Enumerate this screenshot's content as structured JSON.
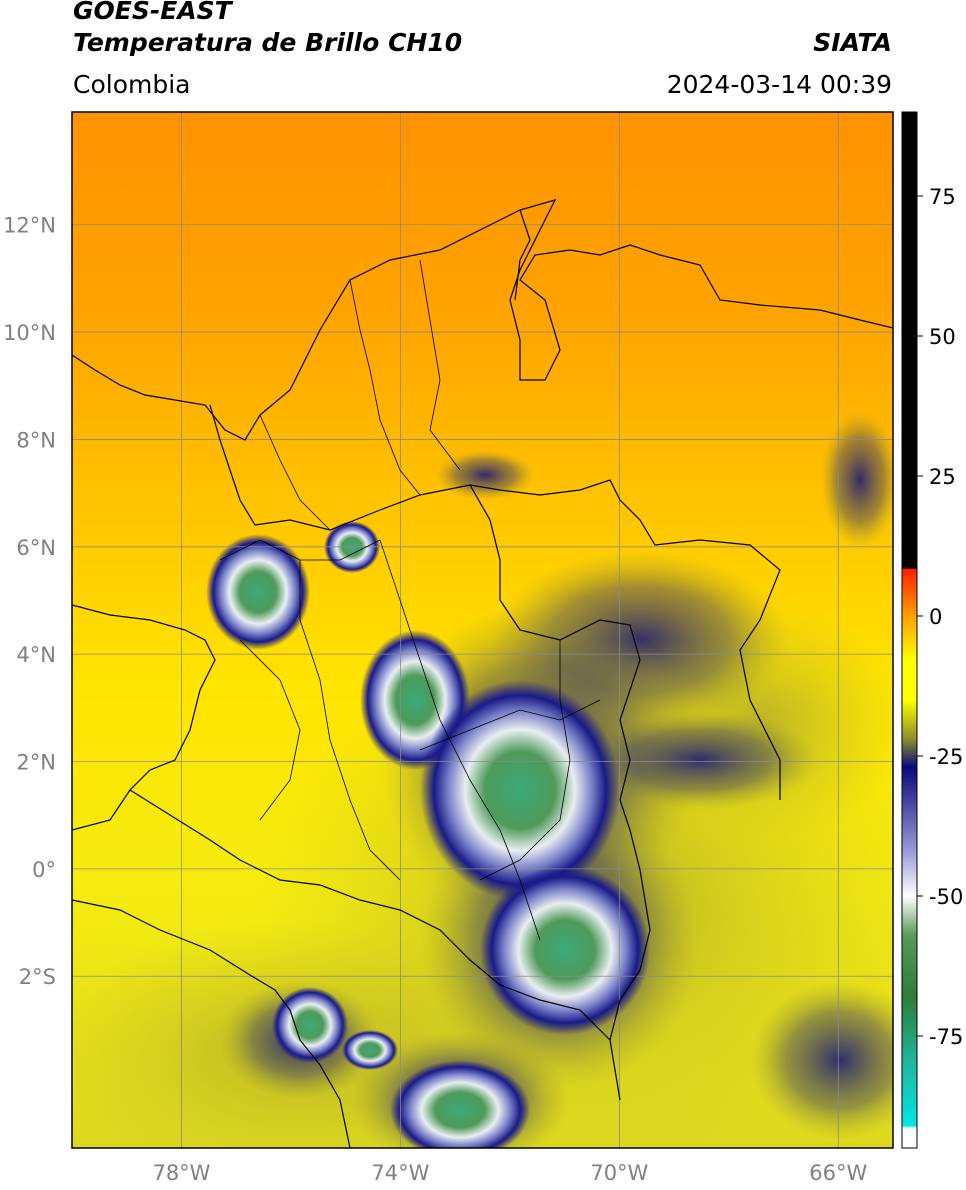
{
  "header": {
    "satellite": "GOES-EAST",
    "product": "Temperatura de Brillo CH10",
    "region": "Colombia",
    "source": "SIATA",
    "timestamp": "2024-03-14 00:39"
  },
  "map": {
    "lon_range": [
      -80,
      -65
    ],
    "lat_range": [
      -5.2,
      14.1
    ],
    "lat_ticks": [
      {
        "value": 12,
        "label": "12°N"
      },
      {
        "value": 10,
        "label": "10°N"
      },
      {
        "value": 8,
        "label": "8°N"
      },
      {
        "value": 6,
        "label": "6°N"
      },
      {
        "value": 4,
        "label": "4°N"
      },
      {
        "value": 2,
        "label": "2°N"
      },
      {
        "value": 0,
        "label": "0°"
      },
      {
        "value": -2,
        "label": "2°S"
      }
    ],
    "lon_ticks": [
      {
        "value": -78,
        "label": "78°W"
      },
      {
        "value": -74,
        "label": "74°W"
      },
      {
        "value": -70,
        "label": "70°W"
      },
      {
        "value": -66,
        "label": "66°W"
      }
    ],
    "grid": true
  },
  "colorbar": {
    "range": [
      -95,
      90
    ],
    "ticks": [
      {
        "value": 75,
        "label": "75"
      },
      {
        "value": 50,
        "label": "50"
      },
      {
        "value": 25,
        "label": "25"
      },
      {
        "value": 0,
        "label": "0"
      },
      {
        "value": -25,
        "label": "-25"
      },
      {
        "value": -50,
        "label": "-50"
      },
      {
        "value": -75,
        "label": "-75"
      }
    ],
    "colors": {
      "black": "#000000",
      "red": "#ff2000",
      "orange": "#ffa000",
      "yellow": "#ffff00",
      "olive": "#8c8c2c",
      "navy": "#0a0a7a",
      "white": "#ffffff",
      "green": "#2e7d3a",
      "cyan": "#00e5e5"
    }
  }
}
